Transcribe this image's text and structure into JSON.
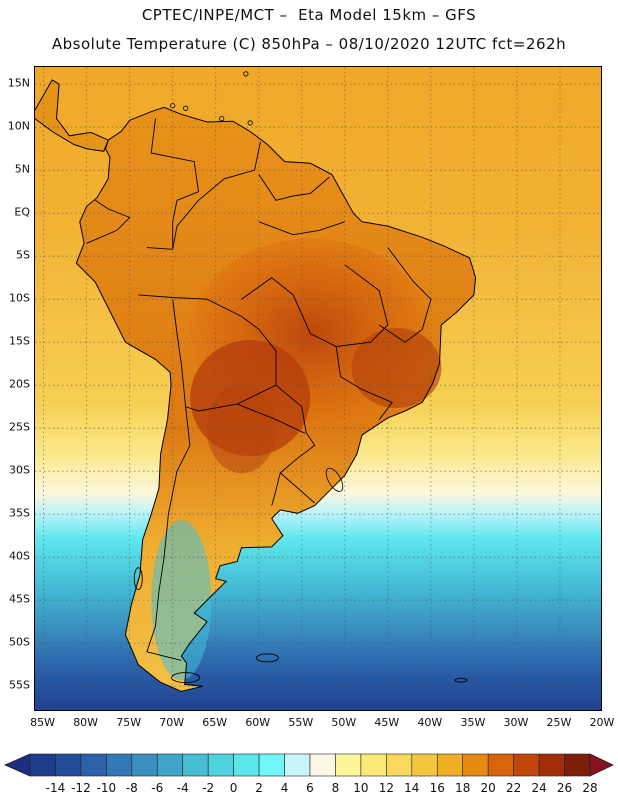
{
  "header": {
    "line1": "CPTEC/INPE/MCT –  Eta Model 15km – GFS",
    "line2": "Absolute Temperature (C) 850hPa – 08/10/2020 12UTC fct=262h"
  },
  "map": {
    "region": "South America",
    "variable": "Absolute Temperature",
    "units": "C",
    "level": "850hPa",
    "lat_labels": [
      "15N",
      "10N",
      "5N",
      "EQ",
      "5S",
      "10S",
      "15S",
      "20S",
      "25S",
      "30S",
      "35S",
      "40S",
      "45S",
      "50S",
      "55S"
    ],
    "lat_values": [
      15,
      10,
      5,
      0,
      -5,
      -10,
      -15,
      -20,
      -25,
      -30,
      -35,
      -40,
      -45,
      -50,
      -55
    ],
    "lon_labels": [
      "85W",
      "80W",
      "75W",
      "70W",
      "65W",
      "60W",
      "55W",
      "50W",
      "45W",
      "40W",
      "35W",
      "30W",
      "25W",
      "20W"
    ],
    "lon_values": [
      -85,
      -80,
      -75,
      -70,
      -65,
      -60,
      -55,
      -50,
      -45,
      -40,
      -35,
      -30,
      -25,
      -20
    ],
    "lat_range": [
      -58,
      17
    ],
    "lon_range": [
      -86,
      -20
    ]
  },
  "legend": {
    "labels": [
      "-14",
      "-12",
      "-10",
      "-8",
      "-6",
      "-4",
      "-2",
      "0",
      "2",
      "4",
      "6",
      "8",
      "10",
      "12",
      "14",
      "16",
      "18",
      "20",
      "22",
      "24",
      "26",
      "28"
    ],
    "colors": [
      "#1e3c8c",
      "#234d9a",
      "#2b62aa",
      "#3378b6",
      "#3a8fc0",
      "#3fa6c9",
      "#45bdd3",
      "#4fd4df",
      "#5ce6ea",
      "#6ff6f6",
      "#c9f6fb",
      "#fdf7e4",
      "#fdf59a",
      "#fbe876",
      "#f8d95a",
      "#f2c640",
      "#efad22",
      "#e88a12",
      "#d9640c",
      "#c2460a",
      "#a22e08",
      "#7e1d0a"
    ],
    "under_color": "#1a2f80",
    "over_color": "#8a1020"
  }
}
